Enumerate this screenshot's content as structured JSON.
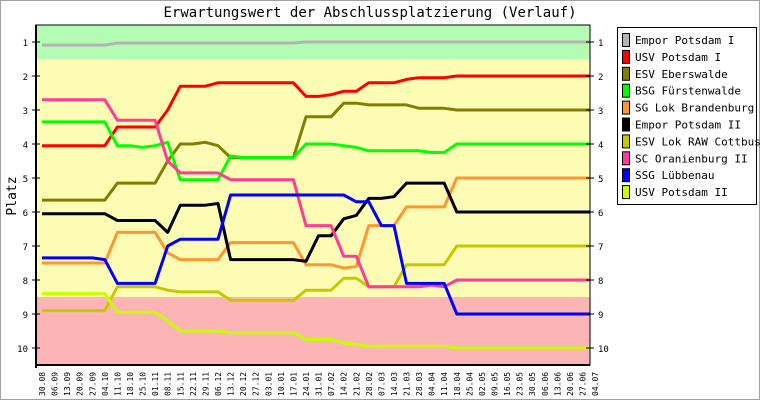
{
  "chart_data": {
    "type": "line",
    "title": "Erwartungswert der Abschlussplatzierung (Verlauf)",
    "xlabel": "",
    "ylabel": "Platz",
    "ylim": [
      0.5,
      10.5
    ],
    "y_inverted": true,
    "yticks": [
      1,
      2,
      3,
      4,
      5,
      6,
      7,
      8,
      9,
      10
    ],
    "grid": false,
    "legend_position": "right",
    "bands": [
      {
        "from": 0.5,
        "to": 1.5,
        "color": "#b4fcb4"
      },
      {
        "from": 1.5,
        "to": 8.5,
        "color": "#fcfcb4"
      },
      {
        "from": 8.5,
        "to": 10.5,
        "color": "#fcb4b4"
      }
    ],
    "x": [
      "30.08",
      "06.09",
      "13.09",
      "20.09",
      "27.09",
      "04.10",
      "11.10",
      "18.10",
      "25.10",
      "01.11",
      "08.11",
      "15.11",
      "22.11",
      "29.11",
      "06.12",
      "13.12",
      "20.12",
      "27.12",
      "03.01",
      "10.01",
      "17.01",
      "24.01",
      "31.01",
      "07.02",
      "14.02",
      "21.02",
      "28.02",
      "07.03",
      "14.03",
      "21.03",
      "28.03",
      "04.04",
      "11.04",
      "18.04",
      "25.04",
      "02.05",
      "09.05",
      "16.05",
      "23.05",
      "30.05",
      "06.06",
      "13.06",
      "20.06",
      "27.06",
      "04.07"
    ],
    "series": [
      {
        "name": "Empor Potsdam I",
        "color": "#b4b4b4",
        "values": [
          1.09,
          1.09,
          1.09,
          1.09,
          1.09,
          1.09,
          1.03,
          1.03,
          1.03,
          1.03,
          1.03,
          1.03,
          1.03,
          1.03,
          1.03,
          1.03,
          1.03,
          1.03,
          1.03,
          1.03,
          1.03,
          1.0,
          1.0,
          1.0,
          1.0,
          1.0,
          1.0,
          1.0,
          1.0,
          1.0,
          1.0,
          1.0,
          1.0,
          1.0,
          1.0,
          1.0,
          1.0,
          1.0,
          1.0,
          1.0,
          1.0,
          1.0,
          1.0,
          1.0,
          1.0
        ]
      },
      {
        "name": "USV Potsdam I",
        "color": "#ff0000",
        "values": [
          4.05,
          4.05,
          4.05,
          4.05,
          4.05,
          4.05,
          3.5,
          3.5,
          3.5,
          3.5,
          3.0,
          2.3,
          2.3,
          2.3,
          2.2,
          2.2,
          2.2,
          2.2,
          2.2,
          2.2,
          2.2,
          2.6,
          2.6,
          2.55,
          2.45,
          2.45,
          2.2,
          2.2,
          2.2,
          2.1,
          2.05,
          2.05,
          2.05,
          2.0,
          2.0,
          2.0,
          2.0,
          2.0,
          2.0,
          2.0,
          2.0,
          2.0,
          2.0,
          2.0,
          2.0
        ]
      },
      {
        "name": "ESV Eberswalde",
        "color": "#808000",
        "values": [
          5.65,
          5.65,
          5.65,
          5.65,
          5.65,
          5.65,
          5.15,
          5.15,
          5.15,
          5.15,
          4.5,
          4.0,
          4.0,
          3.95,
          4.05,
          4.4,
          4.4,
          4.4,
          4.4,
          4.4,
          4.4,
          3.2,
          3.2,
          3.2,
          2.8,
          2.8,
          2.85,
          2.85,
          2.85,
          2.85,
          2.95,
          2.95,
          2.95,
          3.0,
          3.0,
          3.0,
          3.0,
          3.0,
          3.0,
          3.0,
          3.0,
          3.0,
          3.0,
          3.0,
          3.0
        ]
      },
      {
        "name": "BSG Fürstenwalde",
        "color": "#00ff00",
        "values": [
          3.35,
          3.35,
          3.35,
          3.35,
          3.35,
          3.35,
          4.05,
          4.05,
          4.1,
          4.05,
          3.95,
          5.05,
          5.05,
          5.05,
          5.05,
          4.35,
          4.4,
          4.4,
          4.4,
          4.4,
          4.4,
          4.0,
          4.0,
          4.0,
          4.05,
          4.1,
          4.2,
          4.2,
          4.2,
          4.2,
          4.2,
          4.25,
          4.25,
          4.0,
          4.0,
          4.0,
          4.0,
          4.0,
          4.0,
          4.0,
          4.0,
          4.0,
          4.0,
          4.0,
          4.0
        ]
      },
      {
        "name": "SG Lok Brandenburg",
        "color": "#ff9632",
        "values": [
          7.5,
          7.5,
          7.5,
          7.5,
          7.5,
          7.5,
          6.6,
          6.6,
          6.6,
          6.6,
          7.2,
          7.4,
          7.4,
          7.4,
          7.4,
          6.9,
          6.9,
          6.9,
          6.9,
          6.9,
          6.9,
          7.55,
          7.55,
          7.55,
          7.65,
          7.6,
          6.4,
          6.4,
          6.4,
          5.85,
          5.85,
          5.85,
          5.85,
          5.0,
          5.0,
          5.0,
          5.0,
          5.0,
          5.0,
          5.0,
          5.0,
          5.0,
          5.0,
          5.0,
          5.0
        ]
      },
      {
        "name": "Empor Potsdam II",
        "color": "#000000",
        "values": [
          6.05,
          6.05,
          6.05,
          6.05,
          6.05,
          6.05,
          6.25,
          6.25,
          6.25,
          6.25,
          6.6,
          5.8,
          5.8,
          5.8,
          5.75,
          7.4,
          7.4,
          7.4,
          7.4,
          7.4,
          7.4,
          7.45,
          6.7,
          6.7,
          6.2,
          6.1,
          5.6,
          5.6,
          5.55,
          5.15,
          5.15,
          5.15,
          5.15,
          6.0,
          6.0,
          6.0,
          6.0,
          6.0,
          6.0,
          6.0,
          6.0,
          6.0,
          6.0,
          6.0,
          6.0
        ]
      },
      {
        "name": "ESV Lok RAW Cottbus",
        "color": "#c8c800",
        "values": [
          8.9,
          8.9,
          8.9,
          8.9,
          8.9,
          8.9,
          8.2,
          8.2,
          8.2,
          8.2,
          8.3,
          8.35,
          8.35,
          8.35,
          8.35,
          8.6,
          8.6,
          8.6,
          8.6,
          8.6,
          8.6,
          8.3,
          8.3,
          8.3,
          7.95,
          7.95,
          8.2,
          8.2,
          8.2,
          7.55,
          7.55,
          7.55,
          7.55,
          7.0,
          7.0,
          7.0,
          7.0,
          7.0,
          7.0,
          7.0,
          7.0,
          7.0,
          7.0,
          7.0,
          7.0
        ]
      },
      {
        "name": "SC Oranienburg II",
        "color": "#ff3c96",
        "values": [
          2.7,
          2.7,
          2.7,
          2.7,
          2.7,
          2.7,
          3.3,
          3.3,
          3.3,
          3.3,
          4.5,
          4.85,
          4.85,
          4.85,
          4.85,
          5.05,
          5.05,
          5.05,
          5.05,
          5.05,
          5.05,
          6.4,
          6.4,
          6.4,
          7.3,
          7.3,
          8.2,
          8.2,
          8.2,
          8.2,
          8.2,
          8.15,
          8.2,
          8.0,
          8.0,
          8.0,
          8.0,
          8.0,
          8.0,
          8.0,
          8.0,
          8.0,
          8.0,
          8.0,
          8.0
        ]
      },
      {
        "name": "SSG Lübbenau",
        "color": "#0000ff",
        "values": [
          7.35,
          7.35,
          7.35,
          7.35,
          7.35,
          7.4,
          8.1,
          8.1,
          8.1,
          8.1,
          7.0,
          6.8,
          6.8,
          6.8,
          6.8,
          5.5,
          5.5,
          5.5,
          5.5,
          5.5,
          5.5,
          5.5,
          5.5,
          5.5,
          5.5,
          5.7,
          5.7,
          6.4,
          6.4,
          8.1,
          8.1,
          8.1,
          8.1,
          9.0,
          9.0,
          9.0,
          9.0,
          9.0,
          9.0,
          9.0,
          9.0,
          9.0,
          9.0,
          9.0,
          9.0
        ]
      },
      {
        "name": "USV Potsdam II",
        "color": "#c8ff00",
        "values": [
          8.4,
          8.4,
          8.4,
          8.4,
          8.4,
          8.4,
          8.95,
          8.95,
          8.95,
          8.95,
          9.2,
          9.5,
          9.5,
          9.5,
          9.5,
          9.55,
          9.55,
          9.55,
          9.55,
          9.55,
          9.55,
          9.75,
          9.75,
          9.75,
          9.85,
          9.9,
          9.95,
          9.95,
          9.95,
          9.95,
          9.95,
          9.95,
          9.95,
          10.0,
          10.0,
          10.0,
          10.0,
          10.0,
          10.0,
          10.0,
          10.0,
          10.0,
          10.0,
          10.0,
          10.0
        ]
      }
    ]
  }
}
